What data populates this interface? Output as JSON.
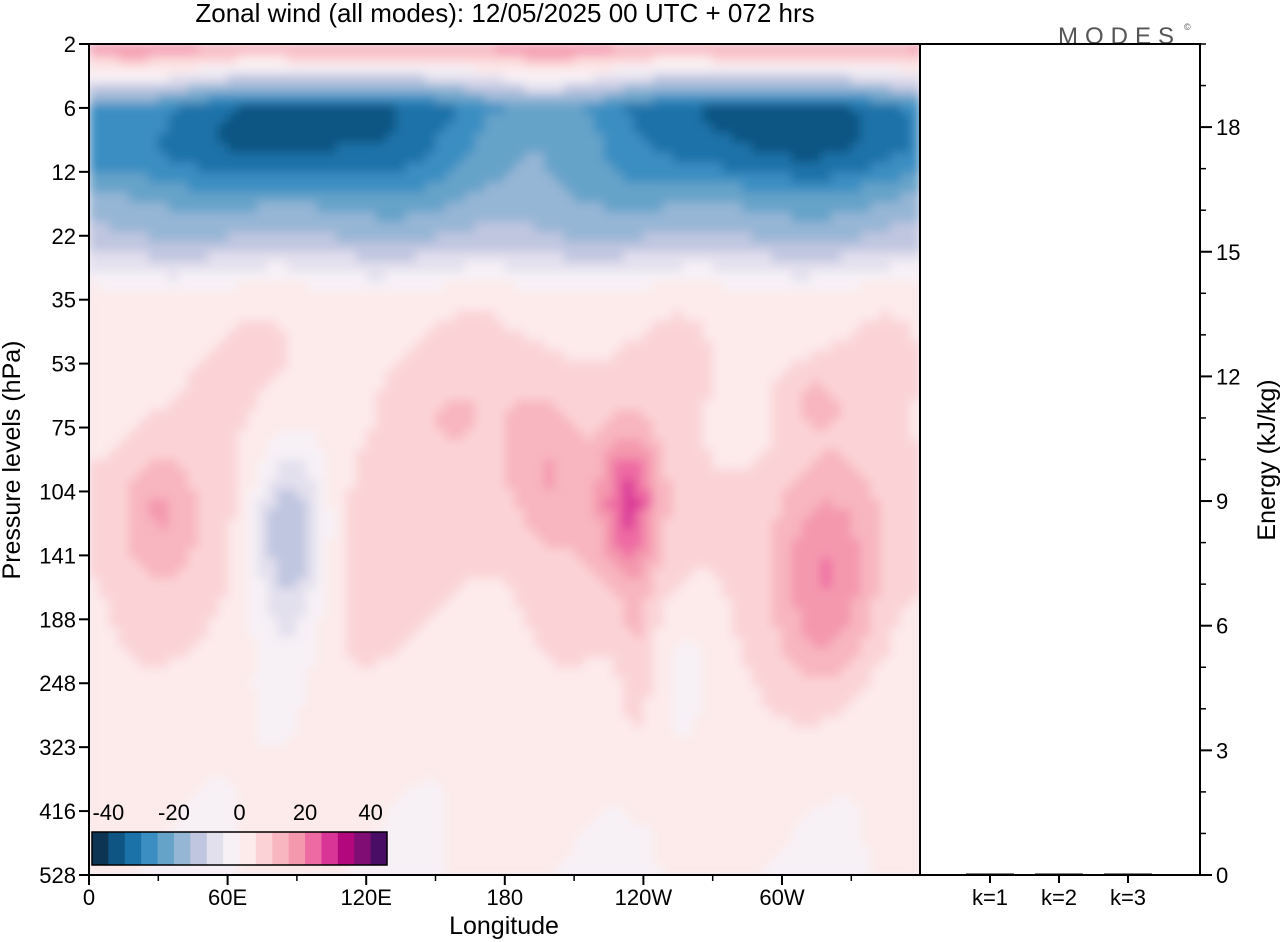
{
  "title": "Zonal wind (all modes):  12/05/2025  00 UTC  + 072 hrs",
  "watermark": "MODES",
  "watermark_mark": "©",
  "chart_data": [
    {
      "type": "heatmap",
      "title": "Zonal wind (all modes):  12/05/2025  00 UTC  + 072 hrs",
      "xlabel": "Longitude",
      "ylabel": "Pressure levels (hPa)",
      "x_ticks": [
        "0",
        "60E",
        "120E",
        "180",
        "120W",
        "60W"
      ],
      "y_ticks": [
        "2",
        "6",
        "12",
        "22",
        "35",
        "53",
        "75",
        "104",
        "141",
        "188",
        "248",
        "323",
        "416",
        "528"
      ],
      "colorbar": {
        "labels": [
          "-40",
          "-20",
          "0",
          "20",
          "40"
        ],
        "min": -45,
        "max": 45,
        "step": 5,
        "colors": [
          "#0d3553",
          "#0e5583",
          "#1b72a9",
          "#3b8ec2",
          "#66a3c9",
          "#96b6d5",
          "#c0c6e0",
          "#e3e0ee",
          "#f7f1f6",
          "#fdeaea",
          "#fbd3d6",
          "#f8b6c0",
          "#f498ad",
          "#ee6aa3",
          "#d93596",
          "#b3077e",
          "#7f0d73",
          "#4a0d66"
        ]
      },
      "field_description_levels": {
        "2": 18,
        "6": -30,
        "12": -25,
        "22": -15,
        "35": 3,
        "53": 5,
        "75": 5,
        "104": 7,
        "141": 7,
        "188": 5,
        "248": 3,
        "323": 2,
        "416": 1,
        "528": 0
      }
    },
    {
      "type": "bar",
      "categories": [
        "k=1",
        "k=2",
        "k=3"
      ],
      "values": [
        0.02,
        0.01,
        0.01
      ],
      "ylabel": "Energy (kJ/kg)",
      "ylim": [
        0,
        20
      ],
      "y_ticks": [
        "0",
        "3",
        "6",
        "9",
        "12",
        "15",
        "18"
      ]
    }
  ]
}
